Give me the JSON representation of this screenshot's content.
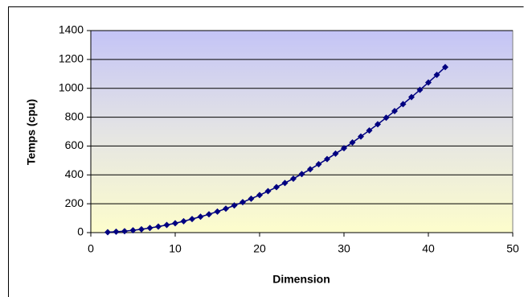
{
  "chart_data": {
    "type": "line",
    "x_label": "Dimension",
    "y_label": "Temps (cpu)",
    "x": [
      2,
      3,
      4,
      5,
      6,
      7,
      8,
      9,
      10,
      11,
      12,
      13,
      14,
      15,
      16,
      17,
      18,
      19,
      20,
      21,
      22,
      23,
      24,
      25,
      26,
      27,
      28,
      29,
      30,
      31,
      32,
      33,
      34,
      35,
      36,
      37,
      38,
      39,
      40,
      41,
      42
    ],
    "series": [
      {
        "color": "#000080",
        "marker": "diamond",
        "values": [
          3,
          6,
          10,
          16,
          23,
          32,
          42,
          53,
          65,
          79,
          94,
          110,
          127,
          146,
          166,
          188,
          211,
          235,
          260,
          287,
          315,
          344,
          374,
          406,
          439,
          474,
          510,
          547,
          585,
          625,
          666,
          708,
          751,
          796,
          842,
          890,
          939,
          989,
          1040,
          1093,
          1147
        ]
      }
    ],
    "xlim": [
      0,
      50
    ],
    "xticks": [
      0,
      10,
      20,
      30,
      40,
      50
    ],
    "ylim": [
      0,
      1400
    ],
    "yticks": [
      0,
      200,
      400,
      600,
      800,
      1000,
      1200,
      1400
    ],
    "grid": true
  }
}
